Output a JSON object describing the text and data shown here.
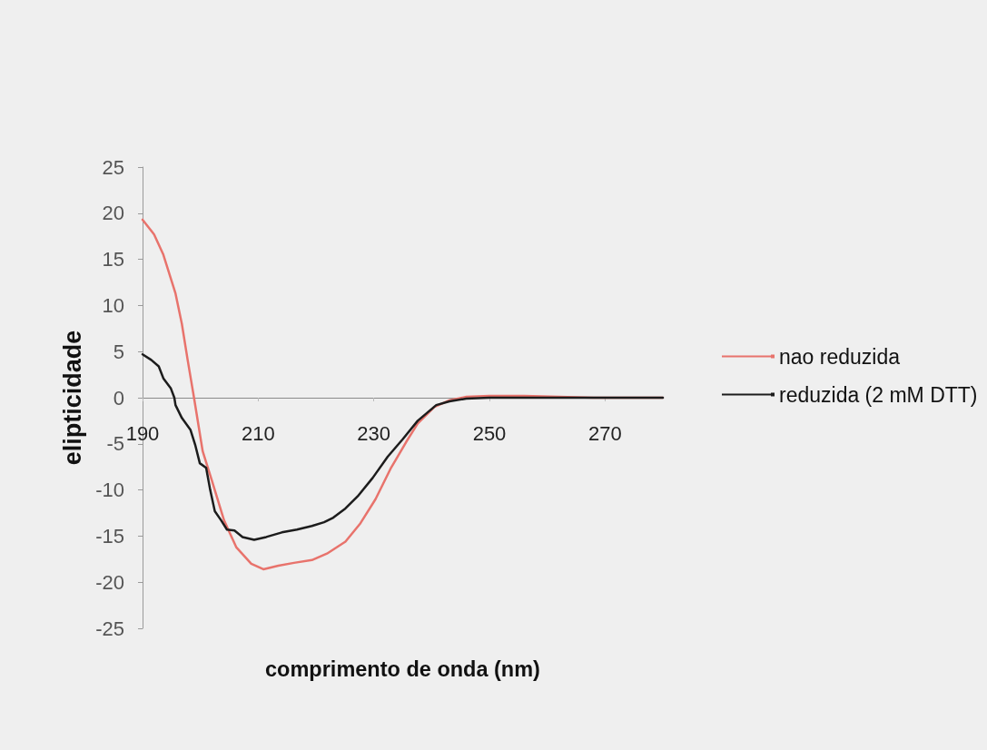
{
  "chart_data": {
    "type": "line",
    "xlabel": "comprimento de onda (nm)",
    "ylabel": "elipticidade",
    "xlim": [
      190,
      280
    ],
    "xticks": [
      190,
      210,
      230,
      250,
      270
    ],
    "ylim": [
      -25,
      25
    ],
    "yticks": [
      -25,
      -20,
      -15,
      -10,
      -5,
      0,
      5,
      10,
      15,
      20,
      25
    ],
    "grid": false,
    "legend": "right",
    "marker": "none",
    "line_style": "solid",
    "series": [
      {
        "name": "nao reduzida",
        "color": "#e8736c",
        "x": [
          190,
          192,
          193.6,
          195.7,
          196.8,
          197.8,
          198.9,
          200.4,
          202,
          204.1,
          206.2,
          208.8,
          210.9,
          213.5,
          216.2,
          219.3,
          221.9,
          225.1,
          227.7,
          230.3,
          232.9,
          235.6,
          237.6,
          240.5,
          243,
          246,
          250,
          256,
          262,
          268,
          280
        ],
        "values": [
          19.3,
          17.7,
          15.5,
          11.3,
          8,
          4.1,
          0,
          -5.8,
          -9,
          -13.3,
          -16.2,
          -18,
          -18.6,
          -18.2,
          -17.9,
          -17.6,
          -16.9,
          -15.6,
          -13.6,
          -11,
          -7.7,
          -4.8,
          -2.8,
          -1,
          -0.3,
          0.1,
          0.2,
          0.2,
          0.1,
          0,
          0
        ]
      },
      {
        "name": "reduzida (2 mM DTT)",
        "color": "#1c1c1c",
        "x": [
          190,
          191.5,
          192.8,
          193.6,
          194.9,
          195.5,
          195.7,
          196.8,
          198.3,
          199.1,
          199.9,
          201,
          201.7,
          202.5,
          203.6,
          204.6,
          205.9,
          207.3,
          209.3,
          211.4,
          214.1,
          216.7,
          219.3,
          221.4,
          223,
          225.1,
          227.2,
          229.8,
          232.4,
          235,
          237.6,
          240.8,
          243.1,
          246,
          250,
          260,
          270,
          280
        ],
        "values": [
          4.7,
          4.1,
          3.4,
          2.1,
          1,
          0,
          -0.8,
          -2.2,
          -3.5,
          -5.1,
          -7.1,
          -7.6,
          -10,
          -12.3,
          -13.3,
          -14.3,
          -14.4,
          -15.1,
          -15.4,
          -15.1,
          -14.6,
          -14.3,
          -13.9,
          -13.5,
          -13,
          -12,
          -10.7,
          -8.7,
          -6.4,
          -4.5,
          -2.5,
          -0.8,
          -0.4,
          -0.1,
          0,
          0,
          0,
          0
        ]
      }
    ]
  }
}
